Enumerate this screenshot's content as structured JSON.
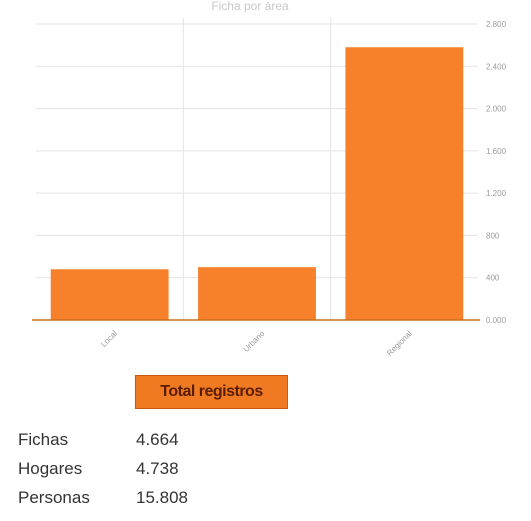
{
  "chart_data": {
    "type": "bar",
    "title": "Ficha por área",
    "categories": [
      "Local",
      "Urbano",
      "Regional"
    ],
    "values": [
      480,
      500,
      2580
    ],
    "ylim": [
      0,
      2800
    ],
    "yticks": [
      0,
      400,
      800,
      1200,
      1600,
      2000,
      2400,
      2800
    ],
    "ytick_labels": [
      "0.000",
      "400",
      "800",
      "1.200",
      "1.600",
      "2.000",
      "2.400",
      "2.800"
    ],
    "bar_color": "#f7812b",
    "grid": true
  },
  "summary": {
    "badge_label": "Total registros",
    "rows": [
      {
        "label": "Fichas",
        "value": "4.664"
      },
      {
        "label": "Hogares",
        "value": "4.738"
      },
      {
        "label": "Personas",
        "value": "15.808"
      }
    ]
  }
}
